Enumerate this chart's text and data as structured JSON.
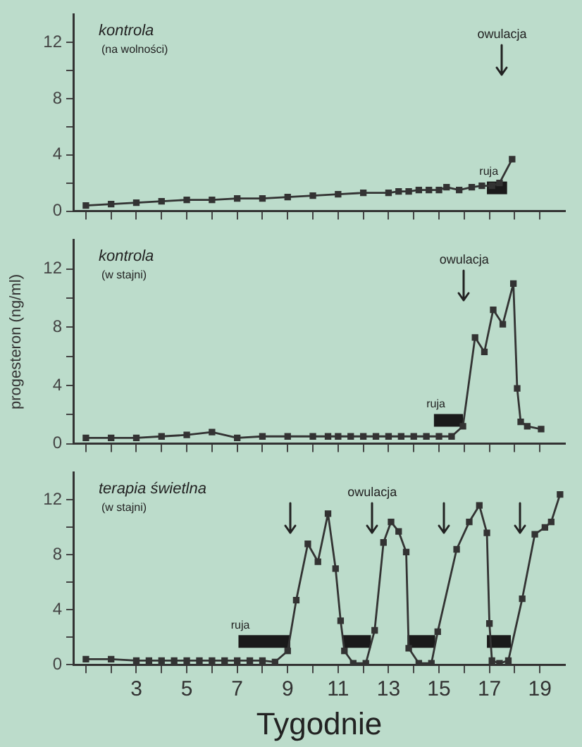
{
  "chart_data": [
    {
      "type": "line",
      "annotations": [
        "kontrola",
        "(na wolności)"
      ],
      "x": [
        1,
        2,
        3,
        4,
        5,
        6,
        7,
        8,
        9,
        10,
        11,
        12,
        13,
        13.4,
        13.8,
        14.2,
        14.6,
        15,
        15.3,
        15.8,
        16.3,
        16.7,
        17.1,
        17.4,
        17.9
      ],
      "values": [
        0.4,
        0.5,
        0.6,
        0.7,
        0.8,
        0.8,
        0.9,
        0.9,
        1.0,
        1.1,
        1.2,
        1.3,
        1.3,
        1.4,
        1.4,
        1.5,
        1.5,
        1.5,
        1.7,
        1.5,
        1.7,
        1.8,
        1.8,
        2.0,
        3.7
      ],
      "color": "#333333",
      "marker": "square",
      "xlim": [
        0.5,
        20
      ],
      "xticks": [
        {
          "value": 1,
          "label": null
        },
        {
          "value": 2,
          "label": null
        },
        {
          "value": 3,
          "label": null
        },
        {
          "value": 4,
          "label": null
        },
        {
          "value": 5,
          "label": null
        },
        {
          "value": 6,
          "label": null
        },
        {
          "value": 7,
          "label": null
        },
        {
          "value": 8,
          "label": null
        },
        {
          "value": 9,
          "label": null
        },
        {
          "value": 10,
          "label": null
        },
        {
          "value": 11,
          "label": null
        },
        {
          "value": 12,
          "label": null
        },
        {
          "value": 13,
          "label": null
        },
        {
          "value": 14,
          "label": null
        },
        {
          "value": 15,
          "label": null
        },
        {
          "value": 16,
          "label": null
        },
        {
          "value": 17,
          "label": null
        },
        {
          "value": 18,
          "label": null
        },
        {
          "value": 19,
          "label": null
        }
      ],
      "ylim": [
        0,
        14
      ],
      "yticks": [
        0,
        {
          "value": 2,
          "label": null
        },
        4,
        {
          "value": 6,
          "label": null
        },
        8,
        {
          "value": 10,
          "label": null
        },
        12
      ],
      "tick_labels": "y",
      "bands": [
        {
          "axis": "x",
          "from": 16.9,
          "to": 17.7,
          "label": "ruja",
          "color": "#1a1a1a"
        }
      ],
      "ref_lines": [
        {
          "axis": "x",
          "value": 17.5,
          "label": "owulacja"
        }
      ]
    },
    {
      "type": "line",
      "annotations": [
        "kontrola",
        "(w stajni)"
      ],
      "ylabel": "progesteron (ng/ml)",
      "x": [
        1,
        2,
        3,
        4,
        5,
        6,
        7,
        8,
        9,
        10,
        10.6,
        11,
        11.5,
        12,
        12.5,
        13,
        13.5,
        14,
        14.5,
        15,
        15.5,
        15.95,
        16.43,
        16.8,
        17.15,
        17.53,
        17.95,
        18.1,
        18.24,
        18.5,
        19.05
      ],
      "values": [
        0.4,
        0.4,
        0.4,
        0.5,
        0.6,
        0.8,
        0.4,
        0.5,
        0.5,
        0.5,
        0.5,
        0.5,
        0.5,
        0.5,
        0.5,
        0.5,
        0.5,
        0.5,
        0.5,
        0.5,
        0.5,
        1.2,
        7.3,
        6.3,
        9.2,
        8.2,
        11,
        3.8,
        1.5,
        1.2,
        1.0
      ],
      "color": "#333333",
      "marker": "square",
      "xlim": [
        0.5,
        20
      ],
      "xticks": [
        {
          "value": 1,
          "label": null
        },
        {
          "value": 2,
          "label": null
        },
        {
          "value": 3,
          "label": null
        },
        {
          "value": 4,
          "label": null
        },
        {
          "value": 5,
          "label": null
        },
        {
          "value": 6,
          "label": null
        },
        {
          "value": 7,
          "label": null
        },
        {
          "value": 8,
          "label": null
        },
        {
          "value": 9,
          "label": null
        },
        {
          "value": 10,
          "label": null
        },
        {
          "value": 11,
          "label": null
        },
        {
          "value": 12,
          "label": null
        },
        {
          "value": 13,
          "label": null
        },
        {
          "value": 14,
          "label": null
        },
        {
          "value": 15,
          "label": null
        },
        {
          "value": 16,
          "label": null
        },
        {
          "value": 17,
          "label": null
        },
        {
          "value": 18,
          "label": null
        },
        {
          "value": 19,
          "label": null
        }
      ],
      "ylim": [
        0,
        14
      ],
      "yticks": [
        0,
        {
          "value": 2,
          "label": null
        },
        4,
        {
          "value": 6,
          "label": null
        },
        8,
        {
          "value": 10,
          "label": null
        },
        12
      ],
      "tick_labels": "y",
      "bands": [
        {
          "axis": "x",
          "from": 14.8,
          "to": 15.95,
          "label": "ruja",
          "color": "#1a1a1a"
        }
      ],
      "ref_lines": [
        {
          "axis": "x",
          "value": 16,
          "label": "owulacja"
        }
      ]
    },
    {
      "type": "line",
      "annotations": [
        "terapia świetlna",
        "(w stajni)"
      ],
      "xlabel": "Tygodnie",
      "x": [
        1,
        2,
        3,
        3.5,
        4,
        4.5,
        5,
        5.5,
        6,
        6.5,
        7,
        7.5,
        8,
        8.5,
        9,
        9.34,
        9.8,
        10.2,
        10.6,
        10.9,
        11.1,
        11.25,
        11.6,
        12.1,
        12.45,
        12.8,
        13.1,
        13.4,
        13.7,
        13.8,
        14.2,
        14.7,
        14.95,
        15.7,
        16.2,
        16.6,
        16.9,
        17.0,
        17.1,
        17.4,
        17.75,
        18.3,
        18.8,
        19.2,
        19.45,
        19.8
      ],
      "values": [
        0.4,
        0.4,
        0.3,
        0.3,
        0.3,
        0.3,
        0.3,
        0.3,
        0.3,
        0.3,
        0.3,
        0.3,
        0.3,
        0.2,
        1.0,
        4.7,
        8.8,
        7.5,
        11,
        7,
        3.2,
        1.0,
        0.1,
        0.1,
        2.5,
        8.9,
        10.4,
        9.7,
        8.2,
        1.2,
        0.1,
        0.1,
        2.4,
        8.4,
        10.4,
        11.6,
        9.6,
        3.0,
        0.3,
        0.1,
        0.3,
        4.8,
        9.5,
        10,
        10.4,
        12.4
      ],
      "color": "#333333",
      "marker": "square",
      "xlim": [
        0.5,
        20
      ],
      "xticks": [
        {
          "value": 1,
          "label": null
        },
        {
          "value": 2,
          "label": null
        },
        3,
        {
          "value": 4,
          "label": null
        },
        5,
        {
          "value": 6,
          "label": null
        },
        7,
        {
          "value": 8,
          "label": null
        },
        9,
        {
          "value": 10,
          "label": null
        },
        11,
        {
          "value": 12,
          "label": null
        },
        13,
        {
          "value": 14,
          "label": null
        },
        15,
        {
          "value": 16,
          "label": null
        },
        17,
        {
          "value": 18,
          "label": null
        },
        19
      ],
      "ylim": [
        0,
        14
      ],
      "yticks": [
        0,
        {
          "value": 2,
          "label": null
        },
        4,
        {
          "value": 6,
          "label": null
        },
        8,
        {
          "value": 10,
          "label": null
        },
        12
      ],
      "bands": [
        {
          "axis": "x",
          "from": 7.05,
          "to": 9.1,
          "label": "ruja",
          "color": "#1a1a1a"
        },
        {
          "axis": "x",
          "from": 11.2,
          "to": 12.3,
          "color": "#1a1a1a"
        },
        {
          "axis": "x",
          "from": 13.75,
          "to": 14.85,
          "color": "#1a1a1a"
        },
        {
          "axis": "x",
          "from": 16.9,
          "to": 17.85,
          "color": "#1a1a1a"
        }
      ],
      "ref_lines": [
        {
          "axis": "x",
          "value": 9.1
        },
        {
          "axis": "x",
          "value": 12.35,
          "label": "owulacja"
        },
        {
          "axis": "x",
          "value": 15.2
        },
        {
          "axis": "x",
          "value": 18.2
        }
      ]
    }
  ]
}
